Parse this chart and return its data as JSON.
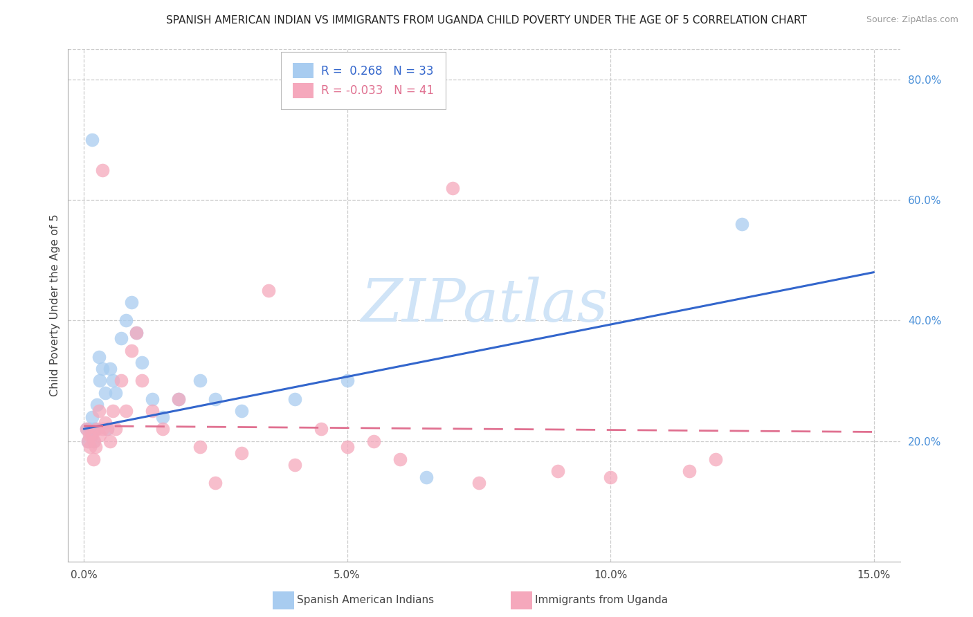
{
  "title": "SPANISH AMERICAN INDIAN VS IMMIGRANTS FROM UGANDA CHILD POVERTY UNDER THE AGE OF 5 CORRELATION CHART",
  "source": "Source: ZipAtlas.com",
  "ylabel": "Child Poverty Under the Age of 5",
  "blue_R": 0.268,
  "blue_N": 33,
  "pink_R": -0.033,
  "pink_N": 41,
  "blue_color": "#A8CCF0",
  "pink_color": "#F5A8BC",
  "blue_line_color": "#3366CC",
  "pink_line_color": "#E07090",
  "watermark": "ZIPatlas",
  "watermark_color": "#D0E4F7",
  "xmin": 0.0,
  "xmax": 15.0,
  "ymin": 0.0,
  "ymax": 0.85,
  "right_yticks": [
    0.2,
    0.4,
    0.6,
    0.8
  ],
  "right_ytick_labels": [
    "20.0%",
    "40.0%",
    "60.0%",
    "80.0%"
  ],
  "xtick_vals": [
    0,
    5,
    10,
    15
  ],
  "xtick_labels": [
    "0.0%",
    "5.0%",
    "10.0%",
    "15.0%"
  ],
  "blue_x": [
    0.05,
    0.08,
    0.1,
    0.12,
    0.15,
    0.18,
    0.2,
    0.22,
    0.25,
    0.28,
    0.3,
    0.35,
    0.4,
    0.45,
    0.5,
    0.55,
    0.6,
    0.7,
    0.8,
    0.9,
    1.0,
    1.1,
    1.3,
    1.5,
    1.8,
    2.2,
    2.5,
    3.0,
    4.0,
    5.0,
    6.5,
    12.5,
    0.15
  ],
  "blue_y": [
    0.22,
    0.2,
    0.22,
    0.22,
    0.24,
    0.2,
    0.22,
    0.22,
    0.26,
    0.34,
    0.3,
    0.32,
    0.28,
    0.22,
    0.32,
    0.3,
    0.28,
    0.37,
    0.4,
    0.43,
    0.38,
    0.33,
    0.27,
    0.24,
    0.27,
    0.3,
    0.27,
    0.25,
    0.27,
    0.3,
    0.14,
    0.56,
    0.7
  ],
  "pink_x": [
    0.05,
    0.08,
    0.1,
    0.12,
    0.15,
    0.18,
    0.2,
    0.22,
    0.25,
    0.28,
    0.3,
    0.35,
    0.4,
    0.45,
    0.5,
    0.55,
    0.6,
    0.7,
    0.8,
    0.9,
    1.0,
    1.1,
    1.3,
    1.5,
    1.8,
    2.2,
    2.5,
    3.0,
    3.5,
    4.0,
    4.5,
    5.0,
    5.5,
    6.0,
    7.0,
    7.5,
    9.0,
    10.0,
    11.5,
    12.0,
    0.35
  ],
  "pink_y": [
    0.22,
    0.2,
    0.21,
    0.19,
    0.21,
    0.17,
    0.2,
    0.19,
    0.22,
    0.25,
    0.21,
    0.22,
    0.23,
    0.22,
    0.2,
    0.25,
    0.22,
    0.3,
    0.25,
    0.35,
    0.38,
    0.3,
    0.25,
    0.22,
    0.27,
    0.19,
    0.13,
    0.18,
    0.45,
    0.16,
    0.22,
    0.19,
    0.2,
    0.17,
    0.62,
    0.13,
    0.15,
    0.14,
    0.15,
    0.17,
    0.65
  ],
  "blue_trend_x": [
    0.0,
    15.0
  ],
  "blue_trend_y": [
    0.22,
    0.48
  ],
  "pink_trend_x": [
    0.0,
    15.0
  ],
  "pink_trend_y": [
    0.225,
    0.215
  ]
}
